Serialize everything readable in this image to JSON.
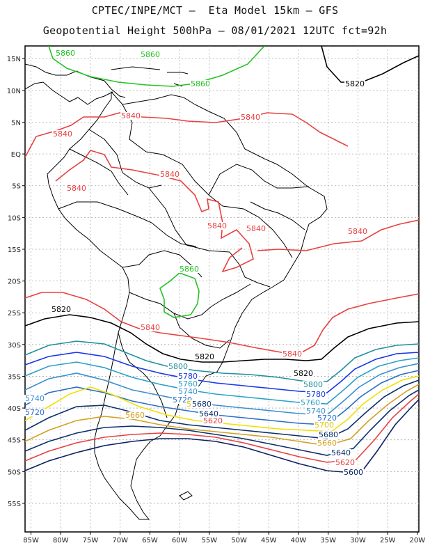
{
  "title_line1": "CPTEC/INPE/MCT –  Eta Model 15km – GFS",
  "title_line2": "Geopotential Height 500hPa – 08/01/2021 12UTC fct=92h",
  "lat_ticks": [
    "15N",
    "10N",
    "5N",
    "EQ",
    "5S",
    "10S",
    "15S",
    "20S",
    "25S",
    "30S",
    "35S",
    "40S",
    "45S",
    "50S",
    "55S"
  ],
  "lon_ticks": [
    "85W",
    "80W",
    "75W",
    "70W",
    "65W",
    "60W",
    "55W",
    "50W",
    "45W",
    "40W",
    "35W",
    "30W",
    "25W",
    "20W"
  ],
  "contour_colors": {
    "5860": "#22c322",
    "5840": "#e84040",
    "5820": "#000000",
    "5800": "#1e8fa0",
    "5780": "#1836e8",
    "5760": "#2aa0c8",
    "5740": "#3a8fd0",
    "5720": "#2a6ec8",
    "5700": "#f0e000",
    "5680": "#0a2f6e",
    "5660": "#d4a020",
    "5640": "#0a2f6e",
    "5620": "#e84040",
    "5600": "#0a2060"
  },
  "labels": {
    "5860": "5860",
    "5840": "5840",
    "5820": "5820",
    "5800": "5800",
    "5780": "5780",
    "5760": "5760",
    "5740": "5740",
    "5720": "5720",
    "5700": "5700",
    "5680": "5680",
    "5660": "5660",
    "5640": "5640",
    "5620": "5620",
    "5600": "5600"
  }
}
